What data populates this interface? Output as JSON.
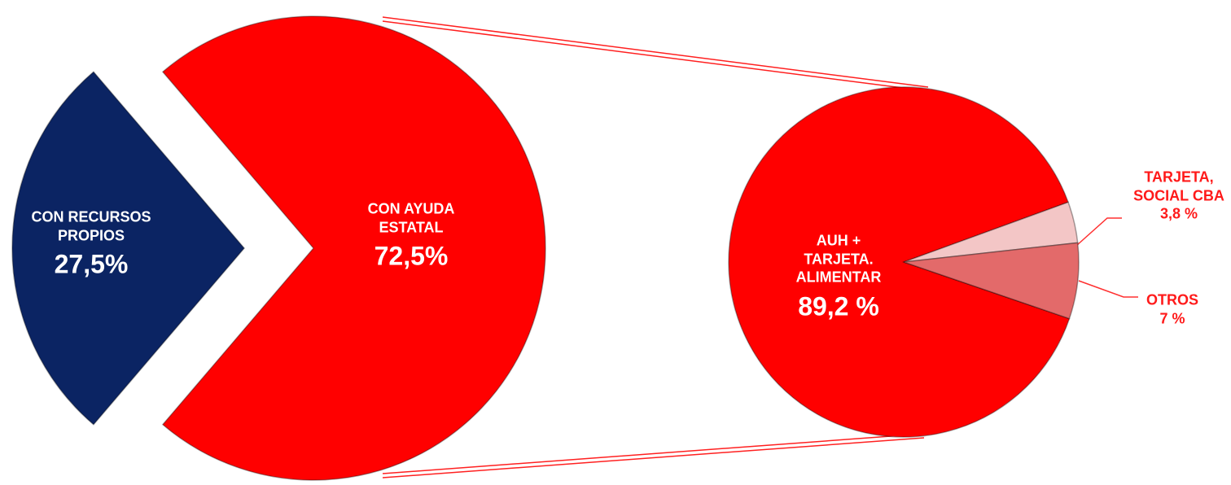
{
  "chart_data": [
    {
      "type": "pie",
      "categories": [
        "CON RECURSOS PROPIOS",
        "CON  AYUDA ESTATAL"
      ],
      "values": [
        27.5,
        72.5
      ],
      "value_labels": [
        "27,5%",
        "72,5%"
      ],
      "colors": [
        "#0b2463",
        "#ff0000"
      ]
    },
    {
      "type": "pie",
      "categories": [
        "AUH + TARJETA. ALIMENTAR",
        "TARJETA, SOCIAL CBA",
        "OTROS"
      ],
      "values": [
        89.2,
        3.8,
        7
      ],
      "value_labels": [
        "89,2 %",
        "3,8 %",
        "7 %"
      ],
      "colors": [
        "#ff0000",
        "#f3c6c6",
        "#e36a6a"
      ]
    }
  ]
}
